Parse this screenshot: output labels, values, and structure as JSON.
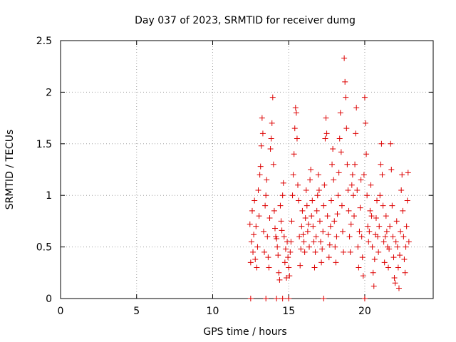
{
  "chart_data": {
    "type": "scatter",
    "title": "Day 037 of 2023, SRMTID for receiver dumg",
    "xlabel": "GPS time / hours",
    "ylabel": "SRMTID / TECUs",
    "xlim": [
      0,
      24.5
    ],
    "ylim": [
      0,
      2.5
    ],
    "x_ticks": [
      0,
      5,
      10,
      15,
      20
    ],
    "y_ticks": [
      0,
      0.5,
      1,
      1.5,
      2,
      2.5
    ],
    "x_tick_labels": [
      "0",
      "5",
      "10",
      "15",
      "20"
    ],
    "y_tick_labels": [
      "0",
      "0.5",
      "1",
      "1.5",
      "2",
      "2.5"
    ],
    "grid": true,
    "legend": "none",
    "marker": "+",
    "marker_color": "#dd0000",
    "series": [
      {
        "values": [
          [
            12.45,
            0.72
          ],
          [
            12.5,
            0.35
          ],
          [
            12.55,
            0.55
          ],
          [
            12.6,
            0.85
          ],
          [
            12.65,
            0.45
          ],
          [
            12.7,
            0.62
          ],
          [
            12.75,
            0.95
          ],
          [
            12.8,
            0.38
          ],
          [
            12.85,
            0.7
          ],
          [
            12.9,
            0.3
          ],
          [
            12.95,
            0.5
          ],
          [
            13.0,
            1.05
          ],
          [
            13.05,
            0.8
          ],
          [
            13.1,
            1.2
          ],
          [
            13.15,
            1.28
          ],
          [
            13.2,
            1.48
          ],
          [
            13.25,
            1.75
          ],
          [
            13.3,
            1.6
          ],
          [
            13.35,
            0.65
          ],
          [
            13.4,
            0.45
          ],
          [
            13.45,
            0.9
          ],
          [
            13.5,
            1.0
          ],
          [
            13.55,
            1.15
          ],
          [
            13.6,
            0.6
          ],
          [
            13.65,
            0.4
          ],
          [
            13.7,
            0.3
          ],
          [
            13.75,
            0.78
          ],
          [
            13.8,
            1.45
          ],
          [
            13.85,
            1.55
          ],
          [
            13.9,
            1.7
          ],
          [
            13.95,
            1.95
          ],
          [
            14.0,
            1.3
          ],
          [
            14.05,
            0.85
          ],
          [
            14.1,
            0.68
          ],
          [
            14.15,
            0.6
          ],
          [
            14.2,
            0.58
          ],
          [
            14.25,
            0.5
          ],
          [
            14.3,
            0.42
          ],
          [
            14.35,
            0.25
          ],
          [
            14.4,
            0.18
          ],
          [
            14.45,
            0.9
          ],
          [
            14.5,
            0.75
          ],
          [
            14.55,
            0.66
          ],
          [
            14.6,
            1.0
          ],
          [
            14.65,
            1.12
          ],
          [
            14.7,
            0.6
          ],
          [
            14.75,
            0.35
          ],
          [
            14.8,
            0.48
          ],
          [
            14.85,
            0.2
          ],
          [
            14.9,
            0.55
          ],
          [
            14.95,
            0.4
          ],
          [
            15.0,
            0.3
          ],
          [
            15.05,
            0.22
          ],
          [
            15.1,
            0.45
          ],
          [
            15.15,
            0.55
          ],
          [
            15.2,
            0.75
          ],
          [
            15.25,
            1.0
          ],
          [
            15.3,
            1.2
          ],
          [
            15.35,
            1.4
          ],
          [
            15.4,
            1.65
          ],
          [
            15.45,
            1.85
          ],
          [
            15.5,
            1.8
          ],
          [
            15.55,
            1.55
          ],
          [
            15.6,
            1.1
          ],
          [
            15.65,
            0.95
          ],
          [
            15.7,
            0.6
          ],
          [
            15.75,
            0.32
          ],
          [
            15.8,
            0.48
          ],
          [
            15.85,
            0.7
          ],
          [
            15.9,
            0.85
          ],
          [
            15.95,
            0.62
          ],
          [
            16.0,
            0.55
          ],
          [
            16.05,
            0.45
          ],
          [
            16.1,
            0.78
          ],
          [
            16.15,
            1.05
          ],
          [
            16.2,
            0.9
          ],
          [
            16.25,
            0.65
          ],
          [
            16.3,
            0.72
          ],
          [
            16.35,
            0.5
          ],
          [
            16.4,
            1.15
          ],
          [
            16.45,
            1.25
          ],
          [
            16.5,
            0.8
          ],
          [
            16.55,
            0.95
          ],
          [
            16.6,
            0.7
          ],
          [
            16.65,
            0.55
          ],
          [
            16.7,
            0.3
          ],
          [
            16.75,
            0.45
          ],
          [
            16.8,
            0.6
          ],
          [
            16.85,
            0.85
          ],
          [
            16.9,
            1.0
          ],
          [
            16.95,
            1.2
          ],
          [
            17.0,
            1.05
          ],
          [
            17.05,
            0.75
          ],
          [
            17.1,
            0.55
          ],
          [
            17.15,
            0.35
          ],
          [
            17.2,
            0.48
          ],
          [
            17.25,
            0.65
          ],
          [
            17.3,
            0.9
          ],
          [
            17.35,
            1.1
          ],
          [
            17.4,
            1.55
          ],
          [
            17.45,
            1.75
          ],
          [
            17.5,
            1.6
          ],
          [
            17.55,
            0.8
          ],
          [
            17.6,
            0.62
          ],
          [
            17.65,
            0.4
          ],
          [
            17.7,
            0.52
          ],
          [
            17.75,
            0.7
          ],
          [
            17.8,
            0.95
          ],
          [
            17.85,
            1.3
          ],
          [
            17.9,
            1.45
          ],
          [
            17.95,
            1.15
          ],
          [
            18.0,
            0.75
          ],
          [
            18.05,
            0.5
          ],
          [
            18.1,
            0.35
          ],
          [
            18.15,
            0.6
          ],
          [
            18.2,
            0.82
          ],
          [
            18.25,
            1.0
          ],
          [
            18.3,
            1.22
          ],
          [
            18.35,
            1.55
          ],
          [
            18.4,
            1.8
          ],
          [
            18.45,
            1.42
          ],
          [
            18.5,
            0.9
          ],
          [
            18.55,
            0.65
          ],
          [
            18.6,
            0.45
          ],
          [
            18.65,
            2.33
          ],
          [
            18.7,
            2.1
          ],
          [
            18.75,
            1.95
          ],
          [
            18.8,
            1.65
          ],
          [
            18.85,
            1.3
          ],
          [
            18.9,
            1.05
          ],
          [
            18.95,
            0.85
          ],
          [
            19.0,
            0.6
          ],
          [
            19.05,
            0.45
          ],
          [
            19.1,
            0.72
          ],
          [
            19.15,
            1.1
          ],
          [
            19.2,
            1.2
          ],
          [
            19.25,
            1.0
          ],
          [
            19.3,
            0.8
          ],
          [
            19.35,
            1.3
          ],
          [
            19.4,
            1.6
          ],
          [
            19.45,
            1.85
          ],
          [
            19.5,
            1.05
          ],
          [
            19.55,
            0.5
          ],
          [
            19.6,
            0.3
          ],
          [
            19.65,
            0.65
          ],
          [
            19.7,
            0.88
          ],
          [
            19.75,
            1.15
          ],
          [
            19.8,
            0.6
          ],
          [
            19.85,
            0.4
          ],
          [
            19.9,
            0.22
          ],
          [
            19.95,
            1.2
          ],
          [
            20.0,
            1.95
          ],
          [
            20.05,
            1.7
          ],
          [
            20.1,
            1.4
          ],
          [
            20.15,
            1.0
          ],
          [
            20.2,
            0.7
          ],
          [
            20.25,
            0.55
          ],
          [
            20.3,
            0.65
          ],
          [
            20.35,
            0.85
          ],
          [
            20.4,
            1.1
          ],
          [
            20.45,
            0.8
          ],
          [
            20.5,
            0.5
          ],
          [
            20.55,
            0.25
          ],
          [
            20.6,
            0.12
          ],
          [
            20.65,
            0.38
          ],
          [
            20.7,
            0.62
          ],
          [
            20.75,
            0.78
          ],
          [
            20.8,
            0.95
          ],
          [
            20.85,
            0.6
          ],
          [
            20.9,
            0.45
          ],
          [
            20.95,
            0.7
          ],
          [
            21.0,
            1.0
          ],
          [
            21.05,
            1.3
          ],
          [
            21.1,
            1.5
          ],
          [
            21.15,
            1.2
          ],
          [
            21.2,
            0.9
          ],
          [
            21.25,
            0.55
          ],
          [
            21.3,
            0.35
          ],
          [
            21.35,
            0.6
          ],
          [
            21.4,
            0.8
          ],
          [
            21.45,
            0.65
          ],
          [
            21.5,
            0.5
          ],
          [
            21.55,
            0.3
          ],
          [
            21.6,
            0.48
          ],
          [
            21.65,
            0.7
          ],
          [
            21.7,
            1.5
          ],
          [
            21.75,
            1.25
          ],
          [
            21.8,
            0.9
          ],
          [
            21.85,
            0.6
          ],
          [
            21.9,
            0.4
          ],
          [
            21.95,
            0.2
          ],
          [
            22.0,
            0.15
          ],
          [
            22.05,
            0.55
          ],
          [
            22.1,
            0.75
          ],
          [
            22.15,
            0.5
          ],
          [
            22.2,
            0.3
          ],
          [
            22.25,
            0.1
          ],
          [
            22.3,
            0.42
          ],
          [
            22.35,
            0.65
          ],
          [
            22.4,
            1.05
          ],
          [
            22.45,
            1.2
          ],
          [
            22.5,
            0.85
          ],
          [
            22.55,
            0.6
          ],
          [
            22.6,
            0.38
          ],
          [
            22.65,
            0.25
          ],
          [
            22.7,
            0.5
          ],
          [
            22.75,
            0.7
          ],
          [
            22.8,
            0.95
          ],
          [
            22.85,
            1.22
          ],
          [
            22.9,
            0.55
          ],
          [
            12.5,
            0.0
          ],
          [
            13.5,
            0.0
          ],
          [
            14.2,
            0.0
          ],
          [
            14.6,
            0.0
          ],
          [
            15.0,
            0.0
          ],
          [
            17.3,
            0.0
          ],
          [
            20.0,
            0.0
          ]
        ]
      }
    ]
  }
}
